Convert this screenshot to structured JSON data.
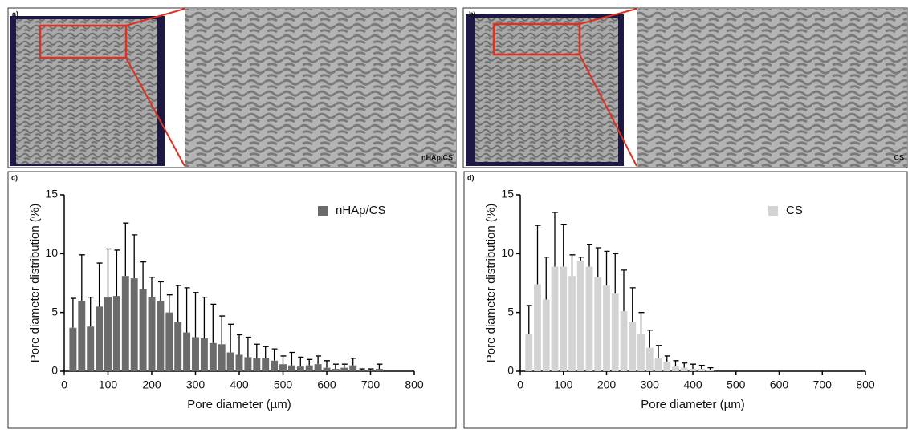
{
  "figure": {
    "panel_a": {
      "label": "a)",
      "caption": "nHAp/CS"
    },
    "panel_b": {
      "label": "b)",
      "caption": "CS"
    }
  },
  "chart_data": [
    {
      "type": "bar",
      "panel_label": "c)",
      "xlabel": "Pore diameter (µm)",
      "ylabel": "Pore diameter distribution (%)",
      "x": [
        20,
        40,
        60,
        80,
        100,
        120,
        140,
        160,
        180,
        200,
        220,
        240,
        260,
        280,
        300,
        320,
        340,
        360,
        380,
        400,
        420,
        440,
        460,
        480,
        500,
        520,
        540,
        560,
        580,
        600,
        620,
        640,
        660,
        680,
        700,
        720
      ],
      "series": [
        {
          "name": "nHAp/CS",
          "color": "#6b6b6b",
          "values": [
            3.7,
            6.0,
            3.8,
            5.5,
            6.3,
            6.4,
            8.1,
            7.9,
            7.0,
            6.3,
            6.0,
            5.0,
            4.2,
            3.3,
            2.9,
            2.8,
            2.4,
            2.3,
            1.6,
            1.4,
            1.2,
            1.1,
            1.1,
            0.9,
            0.6,
            0.5,
            0.4,
            0.5,
            0.6,
            0.3,
            0.2,
            0.3,
            0.5,
            0.1,
            0.1,
            0.2
          ],
          "errors": [
            2.5,
            3.9,
            2.5,
            3.7,
            4.1,
            3.9,
            4.5,
            3.7,
            2.3,
            1.7,
            1.6,
            1.5,
            3.1,
            3.8,
            3.8,
            3.5,
            3.3,
            2.4,
            2.4,
            1.7,
            1.7,
            1.2,
            1.0,
            1.0,
            0.7,
            1.1,
            0.8,
            0.5,
            0.7,
            0.6,
            0.4,
            0.3,
            0.6,
            0.1,
            0.1,
            0.4
          ]
        }
      ],
      "xlim": [
        0,
        800
      ],
      "xticks": [
        0,
        100,
        200,
        300,
        400,
        500,
        600,
        700,
        800
      ],
      "ylim": [
        0,
        15
      ],
      "yticks": [
        0,
        5,
        10,
        15
      ],
      "grid": false,
      "legend": "upper right"
    },
    {
      "type": "bar",
      "panel_label": "d)",
      "xlabel": "Pore diameter (µm)",
      "ylabel": "Pore diameter distribution (%)",
      "x": [
        20,
        40,
        60,
        80,
        100,
        120,
        140,
        160,
        180,
        200,
        220,
        240,
        260,
        280,
        300,
        320,
        340,
        360,
        380,
        400,
        420,
        440
      ],
      "series": [
        {
          "name": "CS",
          "color": "#d3d3d3",
          "values": [
            3.2,
            7.4,
            6.1,
            8.9,
            8.9,
            8.1,
            9.4,
            8.9,
            8.0,
            7.3,
            6.6,
            5.1,
            4.2,
            3.2,
            2.0,
            1.1,
            0.8,
            0.4,
            0.3,
            0.2,
            0.2,
            0.1
          ],
          "errors": [
            2.4,
            5.0,
            3.6,
            4.6,
            3.6,
            1.8,
            0.3,
            1.9,
            2.5,
            2.9,
            3.4,
            3.5,
            2.9,
            1.8,
            1.5,
            1.1,
            0.5,
            0.5,
            0.4,
            0.4,
            0.3,
            0.2
          ]
        }
      ],
      "xlim": [
        0,
        800
      ],
      "xticks": [
        0,
        100,
        200,
        300,
        400,
        500,
        600,
        700,
        800
      ],
      "ylim": [
        0,
        15
      ],
      "yticks": [
        0,
        5,
        10,
        15
      ],
      "grid": false,
      "legend": "upper right"
    }
  ]
}
